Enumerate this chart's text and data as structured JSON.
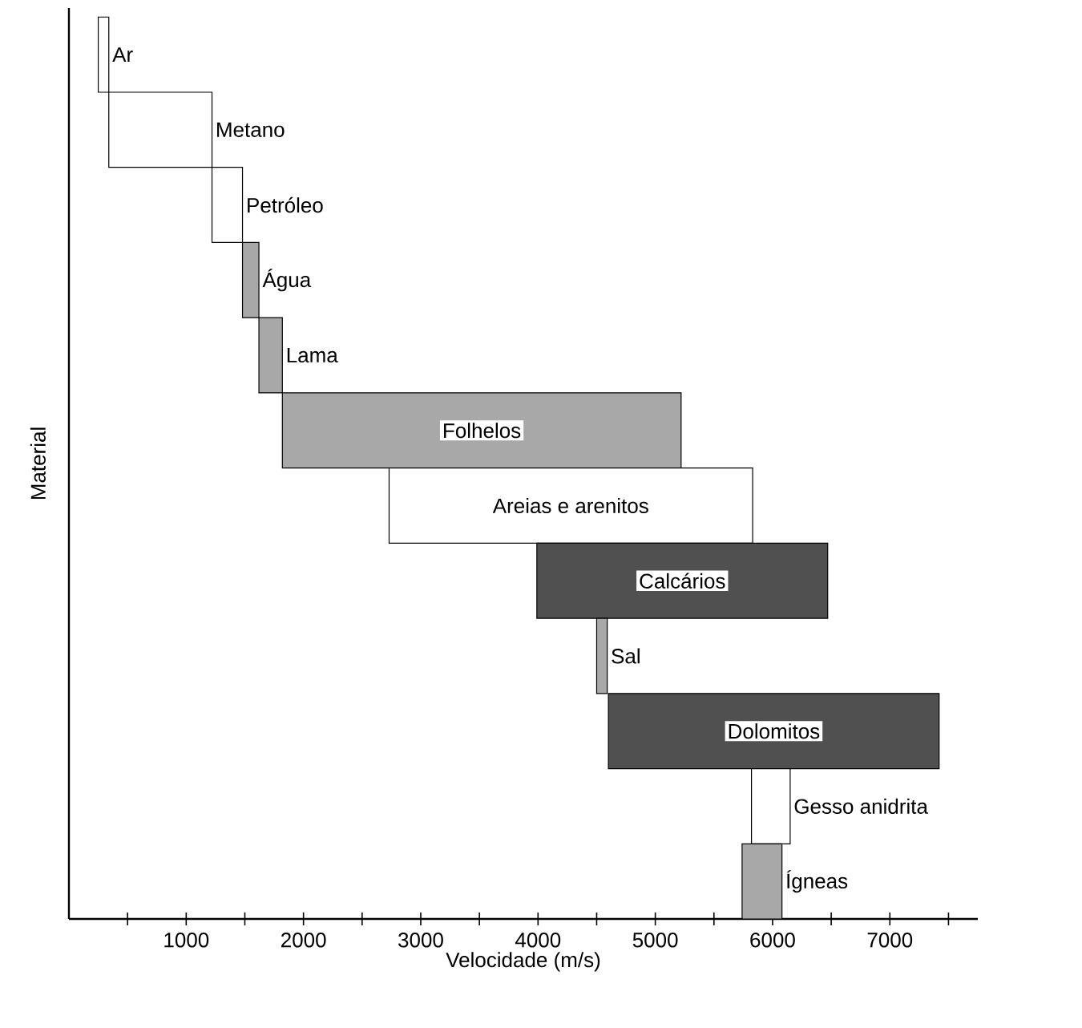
{
  "chart_data": {
    "type": "bar",
    "orientation": "horizontal",
    "xlabel": "Velocidade (m/s)",
    "ylabel": "Material",
    "categories": [
      "Ar",
      "Metano",
      "Petróleo",
      "Água",
      "Lama",
      "Folhelos",
      "Areias e arenitos",
      "Calcários",
      "Sal",
      "Dolomitos",
      "Gesso anidrita",
      "Ígneas"
    ],
    "base": [
      250,
      340,
      1220,
      1480,
      1620,
      1820,
      2730,
      3990,
      4500,
      4600,
      5820,
      5740
    ],
    "values": [
      90,
      880,
      260,
      140,
      200,
      3400,
      3100,
      2480,
      90,
      2820,
      330,
      340
    ],
    "colors": [
      "#ffffff",
      "#ffffff",
      "#ffffff",
      "#a8a8a8",
      "#a8a8a8",
      "#a8a8a8",
      "#ffffff",
      "#505050",
      "#a8a8a8",
      "#505050",
      "#ffffff",
      "#a8a8a8"
    ],
    "xlim": [
      0,
      7750
    ],
    "xticks": [
      {
        "value": 500,
        "label": null
      },
      1000,
      {
        "value": 1500,
        "label": null
      },
      2000,
      {
        "value": 2500,
        "label": null
      },
      3000,
      {
        "value": 3500,
        "label": null
      },
      4000,
      {
        "value": 4500,
        "label": null
      },
      5000,
      {
        "value": 5500,
        "label": null
      },
      6000,
      {
        "value": 6500,
        "label": null
      },
      7000,
      {
        "value": 7500,
        "label": null
      }
    ],
    "tick_labels": "x",
    "grid": false
  }
}
